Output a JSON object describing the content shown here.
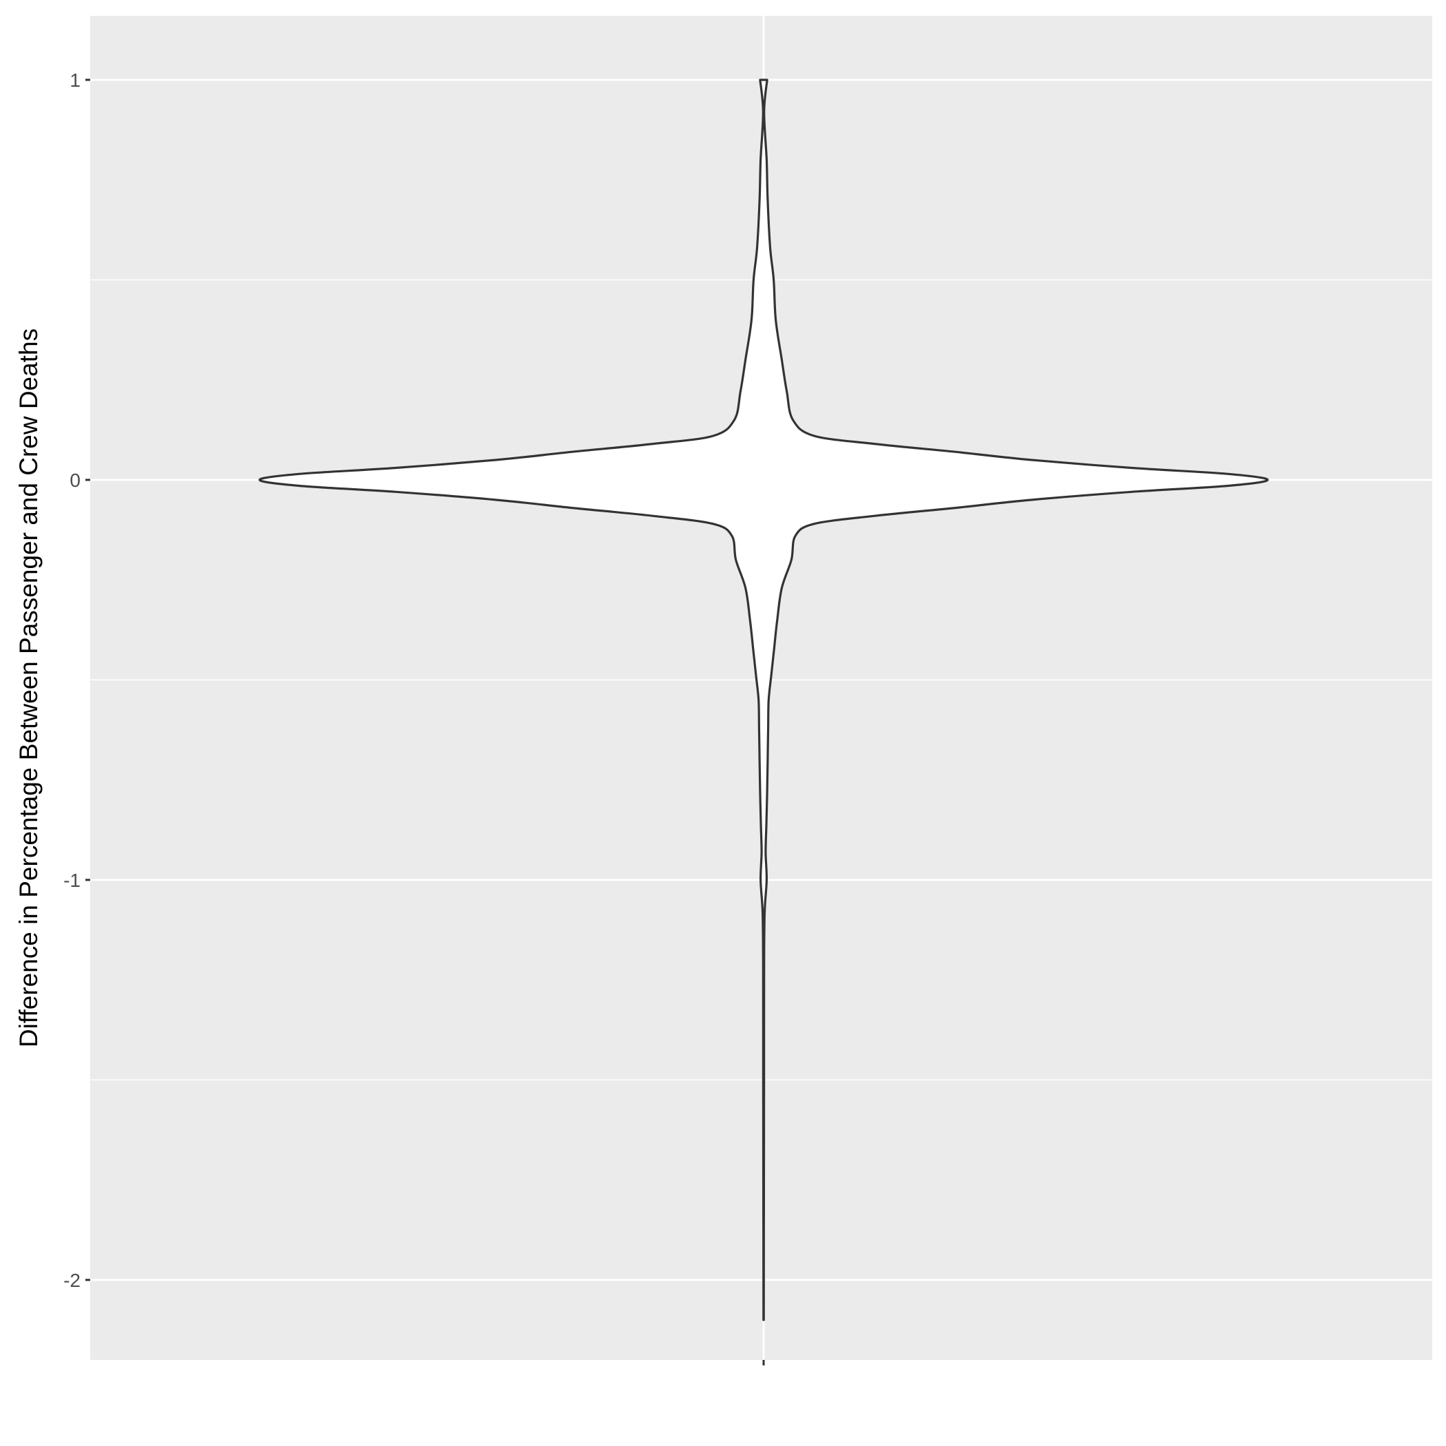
{
  "chart_data": {
    "type": "violin",
    "title": "",
    "xlabel": "",
    "ylabel": "Difference in Percentage Between Passenger and Crew Deaths",
    "ylim": [
      -2.2,
      1.16
    ],
    "y_ticks": [
      1,
      0,
      -1,
      -2
    ],
    "y_tick_labels": [
      "1",
      "0",
      "-1",
      "-2"
    ],
    "x_categories": [
      ""
    ],
    "grid": true,
    "legend": "none",
    "data_range": [
      -2.1,
      1.0
    ],
    "density_profile": {
      "y": [
        1.0,
        0.92,
        0.8,
        0.7,
        0.58,
        0.5,
        0.4,
        0.3,
        0.22,
        0.15,
        0.11,
        0.09,
        0.07,
        0.05,
        0.03,
        0.015,
        0.0,
        -0.015,
        -0.03,
        -0.05,
        -0.07,
        -0.09,
        -0.11,
        -0.14,
        -0.2,
        -0.27,
        -0.35,
        -0.42,
        -0.49,
        -0.55,
        -0.62,
        -0.7,
        -0.78,
        -0.86,
        -0.93,
        -1.0,
        -1.08,
        -1.2,
        -1.5,
        -1.8,
        -2.1
      ],
      "half_width_fraction": [
        0.007,
        0.001,
        0.006,
        0.008,
        0.013,
        0.02,
        0.024,
        0.036,
        0.046,
        0.058,
        0.1,
        0.22,
        0.38,
        0.53,
        0.73,
        0.92,
        1.0,
        0.92,
        0.73,
        0.53,
        0.38,
        0.22,
        0.1,
        0.063,
        0.055,
        0.036,
        0.027,
        0.021,
        0.015,
        0.01,
        0.009,
        0.008,
        0.007,
        0.0055,
        0.004,
        0.006,
        0.002,
        0.001,
        0.0008,
        0.0005,
        0.0003
      ]
    },
    "colors": {
      "panel_background": "#ebebeb",
      "grid_major": "#ffffff",
      "violin_fill": "#ffffff",
      "violin_outline": "#333333",
      "tick_color": "#333333",
      "tick_label": "#4d4d4d"
    }
  }
}
